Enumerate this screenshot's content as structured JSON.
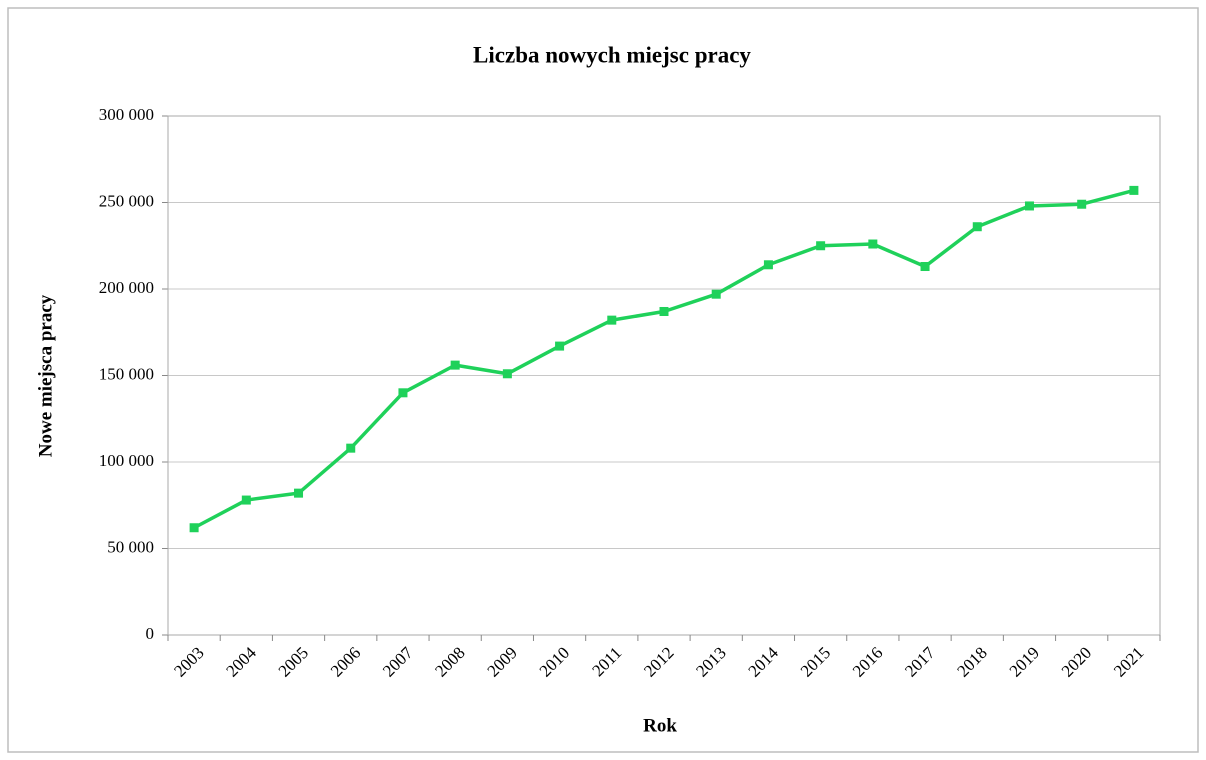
{
  "chart_data": {
    "type": "line",
    "title": "Liczba nowych miejsc pracy",
    "x_label": "Rok",
    "y_label": "Nowe miejsca  pracy",
    "categories": [
      "2003",
      "2004",
      "2005",
      "2006",
      "2007",
      "2008",
      "2009",
      "2010",
      "2011",
      "2012",
      "2013",
      "2014",
      "2015",
      "2016",
      "2017",
      "2018",
      "2019",
      "2020",
      "2021"
    ],
    "series": [
      {
        "name": "Nowe miejsca pracy",
        "color": "#1fd15a",
        "values": [
          62000,
          78000,
          82000,
          108000,
          140000,
          156000,
          151000,
          167000,
          182000,
          187000,
          197000,
          214000,
          225000,
          226000,
          213000,
          236000,
          248000,
          249000,
          257000
        ]
      }
    ],
    "ylim": [
      0,
      300000
    ],
    "yticks": [
      0,
      {
        "value": 50000,
        "label": "50 000"
      },
      {
        "value": 100000,
        "label": "100 000"
      },
      {
        "value": 150000,
        "label": "150 000"
      },
      {
        "value": 200000,
        "label": "200 000"
      },
      {
        "value": 250000,
        "label": "250 000"
      },
      {
        "value": 300000,
        "label": "300 000"
      }
    ],
    "grid": true
  }
}
